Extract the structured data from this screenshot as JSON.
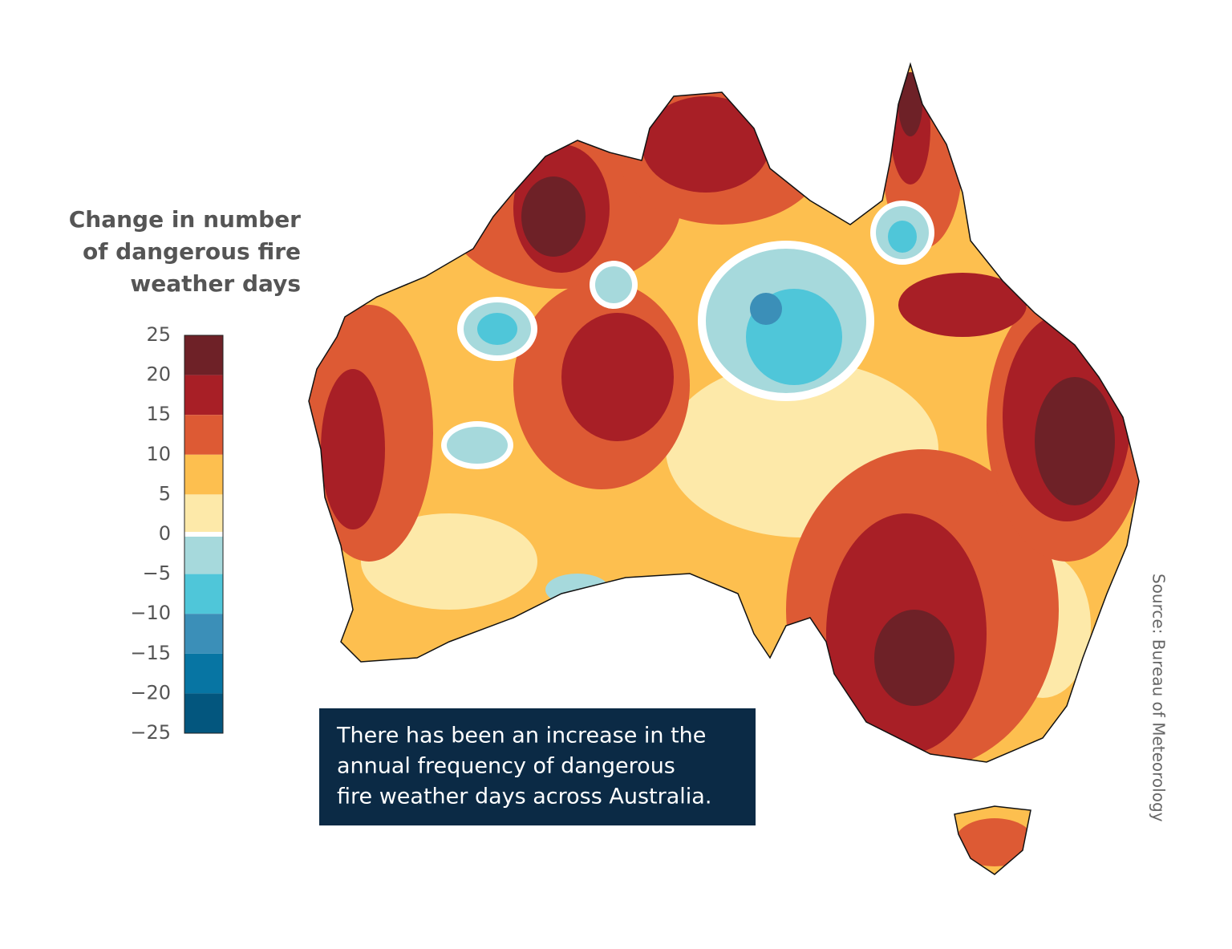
{
  "legend": {
    "title": [
      "Change in number",
      "of dangerous fire",
      "weather days"
    ],
    "ticks": [
      25,
      20,
      15,
      10,
      5,
      0,
      {
        "value": -5,
        "label": "−5"
      },
      {
        "value": -10,
        "label": "−10"
      },
      {
        "value": -15,
        "label": "−15"
      },
      {
        "value": -20,
        "label": "−20"
      },
      {
        "value": -25,
        "label": "−25"
      }
    ],
    "colors": [
      "#6e2127",
      "#a81f26",
      "#dd5a34",
      "#fdbf4f",
      "#fde9a9",
      "#a6d9dc",
      "#4fc6d9",
      "#3b8fb8",
      "#0775a3",
      "#03567e"
    ]
  },
  "caption": [
    "There has been an increase in the",
    "annual frequency of dangerous",
    "fire weather days across Australia."
  ],
  "source": "Source: Bureau of Meteorology"
}
